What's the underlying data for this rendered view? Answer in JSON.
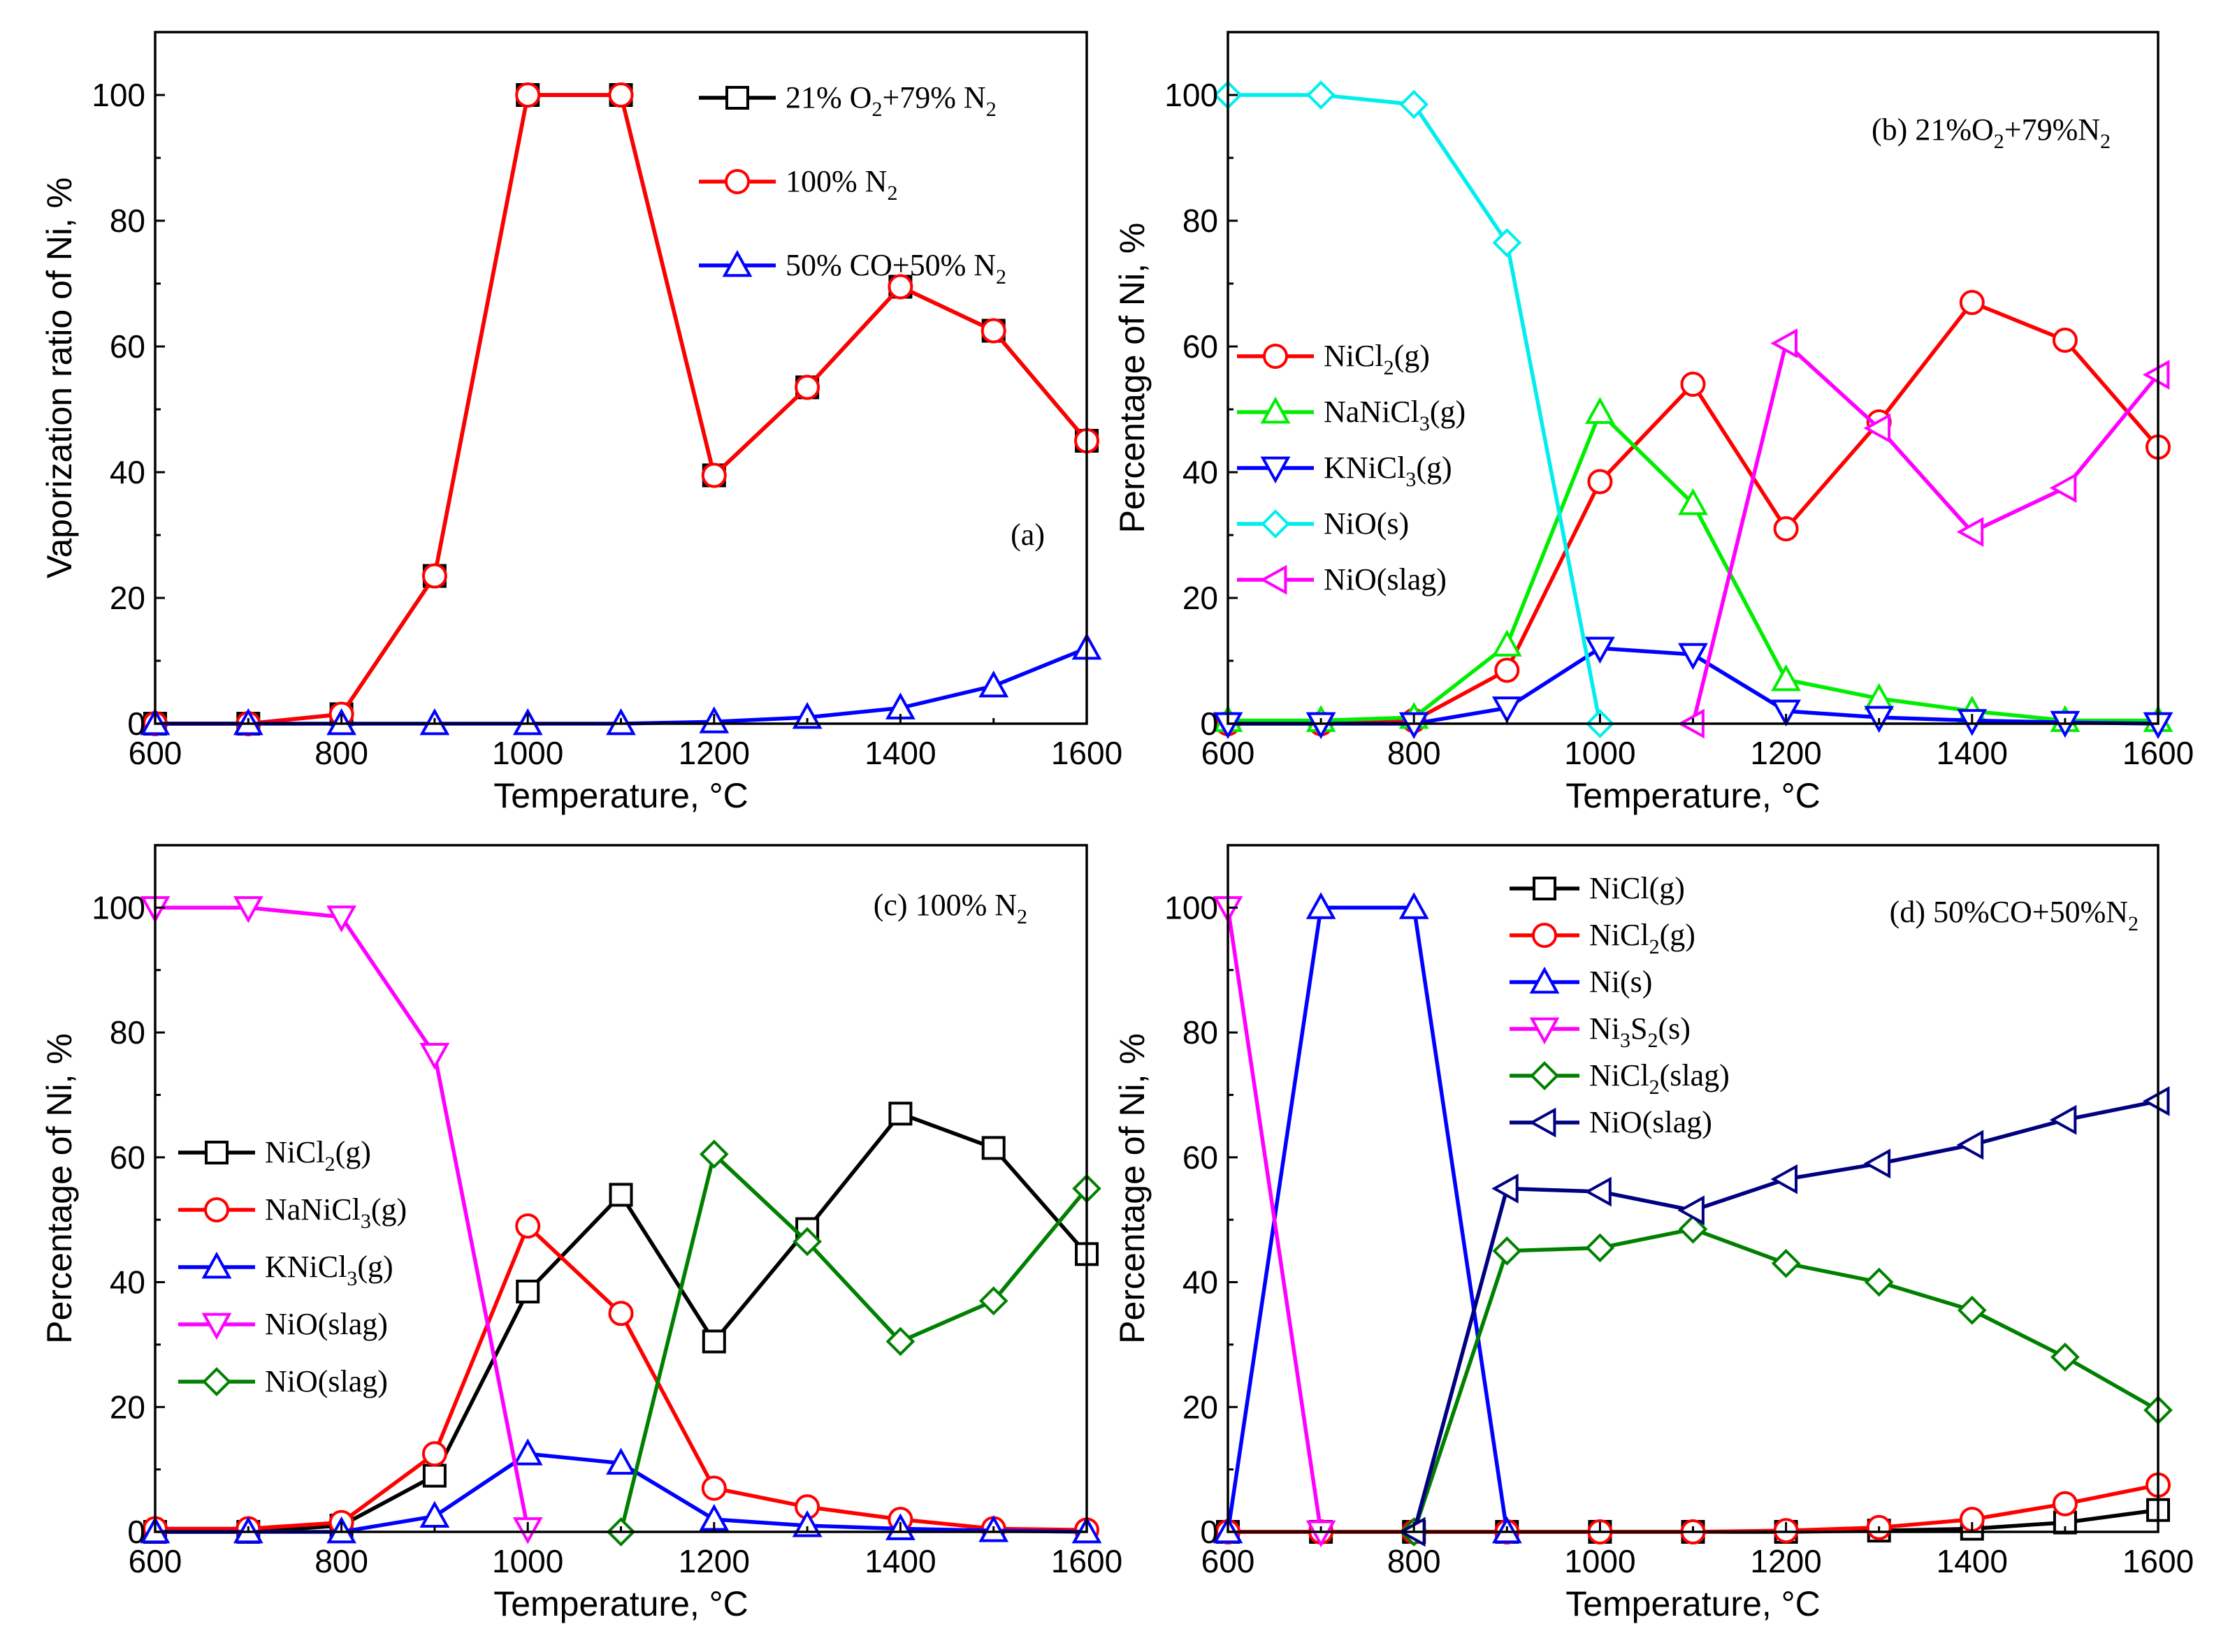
{
  "chart_data": [
    {
      "id": "a",
      "type": "line",
      "title": "",
      "annotation": "(a)",
      "xlabel": "Temperature, °C",
      "ylabel": "Vaporization ratio of Ni, %",
      "xlim": [
        600,
        1600
      ],
      "ylim": [
        0,
        110
      ],
      "xticks": [
        600,
        800,
        1000,
        1200,
        1400,
        1600
      ],
      "yticks": [
        0,
        20,
        40,
        60,
        80,
        100
      ],
      "x": [
        600,
        700,
        800,
        900,
        1000,
        1100,
        1200,
        1300,
        1400,
        1500,
        1600
      ],
      "legend": "top-right",
      "series": [
        {
          "name": "21% O2+79% N2",
          "label": [
            "21% O",
            "2",
            "+79% N",
            "2"
          ],
          "color": "#000000",
          "marker": "square",
          "values": [
            0,
            0,
            1.5,
            23.5,
            100,
            100,
            39.5,
            53.5,
            69.5,
            62.5,
            45
          ]
        },
        {
          "name": "100% N2",
          "label": [
            "100% N",
            "2"
          ],
          "color": "#ff0000",
          "marker": "circle",
          "values": [
            0,
            0,
            1.5,
            23.5,
            100,
            100,
            39.5,
            53.5,
            69.5,
            62.5,
            45
          ]
        },
        {
          "name": "50% CO+50% N2",
          "label": [
            "50% CO+50% N",
            "2"
          ],
          "color": "#0000ff",
          "marker": "triangle-up",
          "values": [
            0,
            0,
            0,
            0,
            0,
            0,
            0.3,
            1,
            2.5,
            6,
            12
          ]
        }
      ]
    },
    {
      "id": "b",
      "type": "line",
      "title": "",
      "annotation": [
        "(b) 21%O",
        "2",
        "+79%N",
        "2"
      ],
      "xlabel": "Temperature, °C",
      "ylabel": "Percentage of Ni, %",
      "xlim": [
        600,
        1600
      ],
      "ylim": [
        0,
        110
      ],
      "xticks": [
        600,
        800,
        1000,
        1200,
        1400,
        1600
      ],
      "yticks": [
        0,
        20,
        40,
        60,
        80,
        100
      ],
      "x": [
        600,
        700,
        800,
        900,
        1000,
        1100,
        1200,
        1300,
        1400,
        1500,
        1600
      ],
      "legend": "middle-left",
      "series": [
        {
          "name": "NiCl2(g)",
          "label": [
            "NiCl",
            "2",
            "(g)"
          ],
          "color": "#ff0000",
          "marker": "circle",
          "values": [
            0,
            0,
            0.5,
            8.5,
            38.5,
            54,
            31,
            48,
            67,
            61,
            44
          ]
        },
        {
          "name": "NaNiCl3(g)",
          "label": [
            "NaNiCl",
            "3",
            "(g)"
          ],
          "color": "#00ee00",
          "marker": "triangle-up",
          "values": [
            0.5,
            0.5,
            1,
            12.5,
            49.5,
            35,
            7,
            4,
            2,
            0.5,
            0.5
          ]
        },
        {
          "name": "KNiCl3(g)",
          "label": [
            "KNiCl",
            "3",
            "(g)"
          ],
          "color": "#0000ff",
          "marker": "triangle-down",
          "values": [
            0,
            0,
            0,
            2.5,
            12,
            11,
            2,
            1,
            0.5,
            0.2,
            0
          ]
        },
        {
          "name": "NiO(s)",
          "label": [
            "NiO(s)"
          ],
          "color": "#00eeee",
          "marker": "diamond",
          "values": [
            100,
            100,
            98.5,
            76.5,
            0,
            null,
            null,
            null,
            null,
            null,
            null
          ]
        },
        {
          "name": "NiO(slag)",
          "label": [
            "NiO(slag)"
          ],
          "color": "#ff00ff",
          "marker": "triangle-left",
          "values": [
            null,
            null,
            null,
            null,
            null,
            0,
            60.5,
            47,
            30.5,
            37.5,
            55.5
          ]
        }
      ]
    },
    {
      "id": "c",
      "type": "line",
      "title": "",
      "annotation": [
        "(c) 100% N",
        "2"
      ],
      "xlabel": "Temperature, °C",
      "ylabel": "Percentage of Ni, %",
      "xlim": [
        600,
        1600
      ],
      "ylim": [
        0,
        110
      ],
      "xticks": [
        600,
        800,
        1000,
        1200,
        1400,
        1600
      ],
      "yticks": [
        0,
        20,
        40,
        60,
        80,
        100
      ],
      "x": [
        600,
        700,
        800,
        900,
        1000,
        1100,
        1200,
        1300,
        1400,
        1500,
        1600
      ],
      "legend": "middle-left",
      "series": [
        {
          "name": "NiCl2(g)",
          "label": [
            "NiCl",
            "2",
            "(g)"
          ],
          "color": "#000000",
          "marker": "square",
          "values": [
            0,
            0,
            1,
            9,
            38.5,
            54,
            30.5,
            48.5,
            67,
            61.5,
            44.5
          ]
        },
        {
          "name": "NaNiCl3(g)",
          "label": [
            "NaNiCl",
            "3",
            "(g)"
          ],
          "color": "#ff0000",
          "marker": "circle",
          "values": [
            0.5,
            0.5,
            1.5,
            12.5,
            49,
            35,
            7,
            4,
            2,
            0.5,
            0.3
          ]
        },
        {
          "name": "KNiCl3(g)",
          "label": [
            "KNiCl",
            "3",
            "(g)"
          ],
          "color": "#0000ff",
          "marker": "triangle-up",
          "values": [
            0,
            0,
            0,
            2.5,
            12.5,
            11,
            2,
            1,
            0.5,
            0.2,
            0
          ]
        },
        {
          "name": "NiO(slag)",
          "label": [
            "NiO(slag)"
          ],
          "color": "#ff00ff",
          "marker": "triangle-down",
          "values": [
            100,
            100,
            98.5,
            76.5,
            0.5,
            null,
            null,
            null,
            null,
            null,
            null
          ]
        },
        {
          "name": "NiO(slag)",
          "label": [
            "NiO(slag)"
          ],
          "color": "#008000",
          "marker": "diamond",
          "values": [
            null,
            null,
            null,
            null,
            null,
            0,
            60.5,
            46.5,
            30.5,
            37,
            55
          ]
        }
      ]
    },
    {
      "id": "d",
      "type": "line",
      "title": "",
      "annotation": [
        "(d) 50%CO+50%N",
        "2"
      ],
      "xlabel": "Temperature, °C",
      "ylabel": "Percentage of Ni, %",
      "xlim": [
        600,
        1600
      ],
      "ylim": [
        0,
        110
      ],
      "xticks": [
        600,
        800,
        1000,
        1200,
        1400,
        1600
      ],
      "yticks": [
        0,
        20,
        40,
        60,
        80,
        100
      ],
      "x": [
        600,
        700,
        800,
        900,
        1000,
        1100,
        1200,
        1300,
        1400,
        1500,
        1600
      ],
      "legend": "top-left",
      "series": [
        {
          "name": "NiCl(g)",
          "label": [
            "NiCl(g)"
          ],
          "color": "#000000",
          "marker": "square",
          "values": [
            0,
            0,
            0,
            0,
            0,
            0,
            0,
            0.2,
            0.5,
            1.5,
            3.5
          ]
        },
        {
          "name": "NiCl2(g)",
          "label": [
            "NiCl",
            "2",
            "(g)"
          ],
          "color": "#ff0000",
          "marker": "circle",
          "values": [
            0,
            0,
            0,
            0,
            0,
            0,
            0.2,
            0.7,
            2,
            4.5,
            7.5
          ]
        },
        {
          "name": "Ni(s)",
          "label": [
            "Ni(s)"
          ],
          "color": "#0000ff",
          "marker": "triangle-up",
          "values": [
            0,
            100,
            100,
            0,
            null,
            null,
            null,
            null,
            null,
            null,
            null
          ]
        },
        {
          "name": "Ni3S2(s)",
          "label": [
            "Ni",
            "3",
            "S",
            "2",
            "(s)"
          ],
          "color": "#ff00ff",
          "marker": "triangle-down",
          "values": [
            100,
            0,
            null,
            null,
            null,
            null,
            null,
            null,
            null,
            null,
            null
          ]
        },
        {
          "name": "NiCl2(slag)",
          "label": [
            "NiCl",
            "2",
            "(slag)"
          ],
          "color": "#008000",
          "marker": "diamond",
          "values": [
            null,
            null,
            0,
            45,
            45.5,
            48.5,
            43,
            40,
            35.5,
            28,
            19.5
          ]
        },
        {
          "name": "NiO(slag)",
          "label": [
            "NiO(slag)"
          ],
          "color": "#000080",
          "marker": "triangle-left",
          "values": [
            null,
            null,
            0,
            55,
            54.5,
            51.5,
            56.5,
            59,
            62,
            66,
            69
          ]
        }
      ]
    }
  ]
}
